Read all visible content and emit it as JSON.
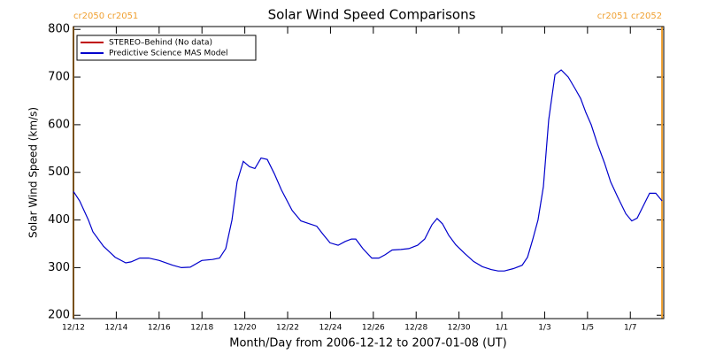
{
  "chart_data": {
    "type": "line",
    "title": "Solar Wind Speed Comparisons",
    "x_label": "Month/Day from 2006-12-12 to 2007-01-08 (UT)",
    "y_label": "Solar Wind Speed (km/s)",
    "xlim": [
      0,
      27.56
    ],
    "ylim": [
      193,
      806
    ],
    "xticks": [
      {
        "value": 0,
        "label": "12/12"
      },
      {
        "value": 2,
        "label": "12/14"
      },
      {
        "value": 4,
        "label": "12/16"
      },
      {
        "value": 6,
        "label": "12/18"
      },
      {
        "value": 8,
        "label": "12/20"
      },
      {
        "value": 10,
        "label": "12/22"
      },
      {
        "value": 12,
        "label": "12/24"
      },
      {
        "value": 14,
        "label": "12/26"
      },
      {
        "value": 16,
        "label": "12/28"
      },
      {
        "value": 18,
        "label": "12/30"
      },
      {
        "value": 20,
        "label": "1/1"
      },
      {
        "value": 22,
        "label": "1/3"
      },
      {
        "value": 24,
        "label": "1/5"
      },
      {
        "value": 26,
        "label": "1/7"
      }
    ],
    "yticks": [
      200,
      300,
      400,
      500,
      600,
      700,
      800
    ],
    "legend_position": "upper left",
    "annotations": [
      {
        "text": "cr2050 cr2051",
        "x": 0,
        "color": "#f0a030"
      },
      {
        "text": "cr2051 cr2052",
        "x": 27.48,
        "color": "#f0a030"
      }
    ],
    "series": [
      {
        "name": "STEREO–Behind (No data)",
        "color": "#c00000",
        "x": [],
        "values": []
      },
      {
        "name": "Predictive Science MAS Model",
        "color": "#0000cc",
        "x": [
          0,
          0.29,
          0.7,
          0.91,
          1.4,
          1.94,
          2.44,
          2.69,
          3.1,
          3.51,
          4.01,
          4.63,
          5.04,
          5.45,
          5.99,
          6.49,
          6.82,
          7.11,
          7.4,
          7.64,
          7.93,
          8.22,
          8.47,
          8.76,
          9.05,
          9.38,
          9.71,
          10.21,
          10.62,
          11.03,
          11.36,
          11.65,
          11.98,
          12.36,
          12.69,
          12.98,
          13.18,
          13.51,
          13.93,
          14.26,
          14.55,
          14.88,
          15.29,
          15.66,
          16.07,
          16.4,
          16.74,
          16.98,
          17.23,
          17.52,
          17.85,
          18.26,
          18.68,
          19.09,
          19.5,
          19.83,
          20.12,
          20.54,
          20.95,
          21.2,
          21.45,
          21.69,
          21.94,
          22.19,
          22.48,
          22.77,
          23.1,
          23.43,
          23.68,
          23.93,
          24.17,
          24.46,
          24.79,
          25.08,
          25.41,
          25.79,
          26.07,
          26.32,
          26.61,
          26.9,
          27.19,
          27.48
        ],
        "values": [
          460,
          440,
          400,
          375,
          345,
          322,
          310,
          312,
          320,
          320,
          315,
          305,
          300,
          301,
          315,
          317,
          320,
          340,
          400,
          480,
          523,
          512,
          508,
          530,
          527,
          497,
          463,
          420,
          398,
          392,
          387,
          370,
          352,
          347,
          355,
          360,
          360,
          340,
          320,
          320,
          327,
          337,
          338,
          340,
          347,
          360,
          390,
          403,
          392,
          368,
          348,
          330,
          313,
          302,
          296,
          293,
          293,
          298,
          305,
          322,
          360,
          400,
          470,
          610,
          705,
          715,
          700,
          675,
          655,
          625,
          600,
          560,
          520,
          480,
          448,
          413,
          398,
          404,
          430,
          456,
          456,
          440
        ]
      }
    ]
  }
}
